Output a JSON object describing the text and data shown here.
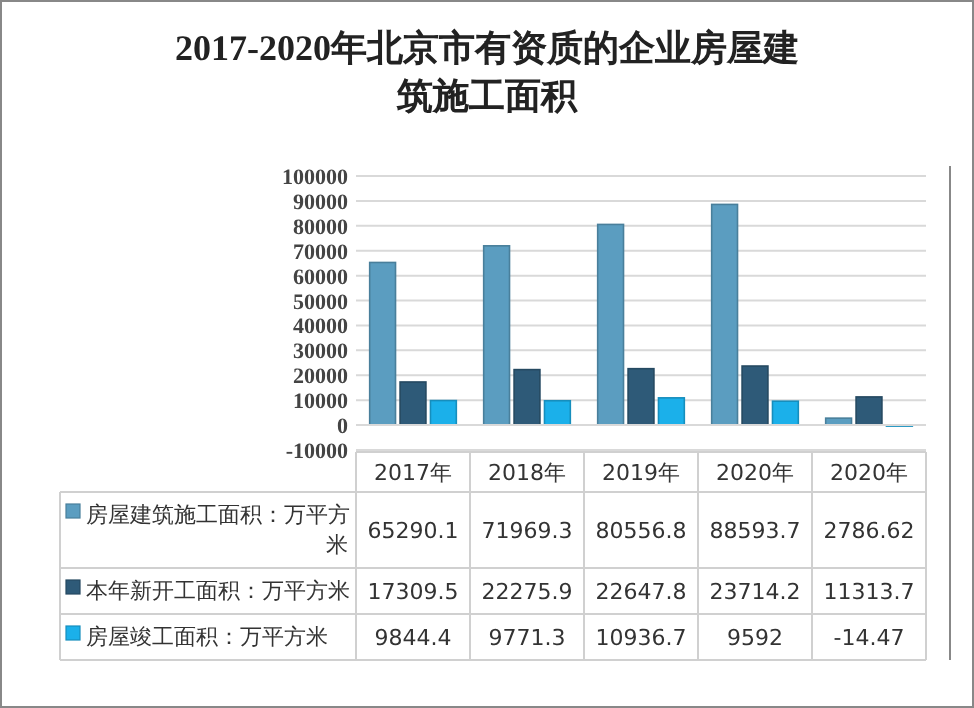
{
  "chart_data": {
    "type": "bar",
    "title": "2017-2020年北京市有资质的企业房屋建筑施工面积",
    "categories": [
      "2017年",
      "2018年",
      "2019年",
      "2020年",
      "2020年"
    ],
    "series": [
      {
        "name": "房屋建筑施工面积：万平方米",
        "color": "#5b9dc0",
        "values": [
          65290.1,
          71969.3,
          80556.8,
          88593.7,
          2786.62
        ]
      },
      {
        "name": "本年新开工面积：万平方米",
        "color": "#2e5a78",
        "values": [
          17309.5,
          22275.9,
          22647.8,
          23714.2,
          11313.7
        ]
      },
      {
        "name": "房屋竣工面积：万平方米",
        "color": "#1bb0ea",
        "values": [
          9844.4,
          9771.3,
          10936.7,
          9592,
          -14.47
        ]
      }
    ],
    "ylim": [
      -10000,
      100000
    ],
    "yticks": [
      -10000,
      0,
      10000,
      20000,
      30000,
      40000,
      50000,
      60000,
      70000,
      80000,
      90000,
      100000
    ],
    "grid": "y",
    "legend": "bottom",
    "data_labels": true
  }
}
